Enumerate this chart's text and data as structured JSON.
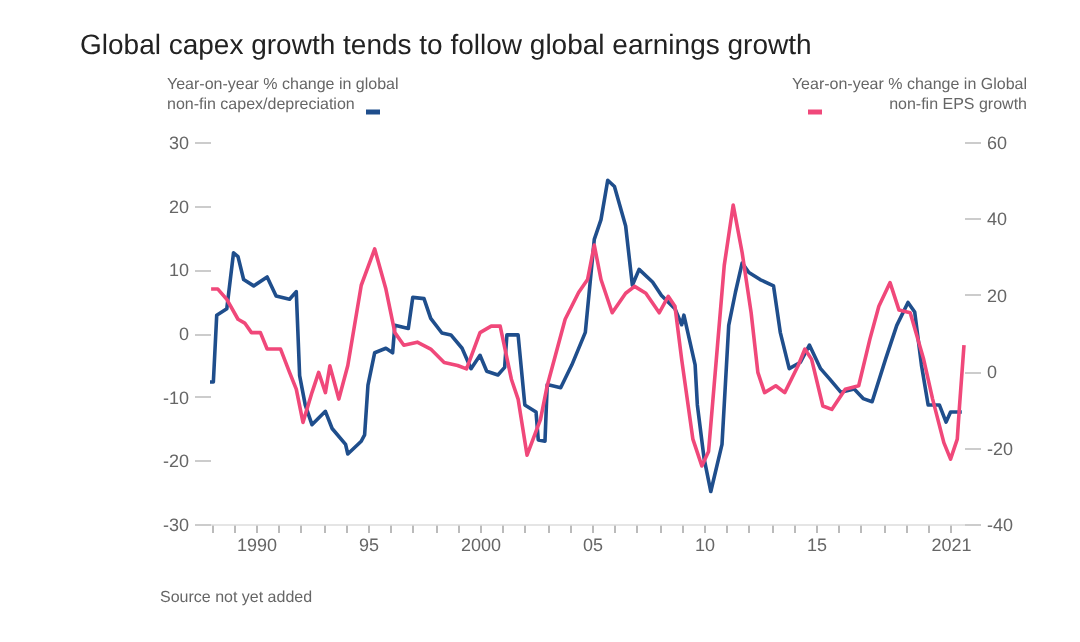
{
  "chart_data": {
    "type": "line",
    "title": "Global capex growth tends to follow global earnings growth",
    "ylabel": "Year-on-year % change in global\nnon-fin capex/depreciation",
    "y2label": "Year-on-year % change in Global\nnon-fin EPS growth",
    "annotations": [
      "Source not yet added"
    ],
    "xlim": [
      1987.95,
      2021.6
    ],
    "xticks": [
      {
        "value": 1988,
        "label": null
      },
      {
        "value": 1989,
        "label": null
      },
      {
        "value": 1990,
        "label": "1990"
      },
      {
        "value": 1991,
        "label": null
      },
      {
        "value": 1992,
        "label": null
      },
      {
        "value": 1993,
        "label": null
      },
      {
        "value": 1994,
        "label": null
      },
      {
        "value": 1995,
        "label": "95"
      },
      {
        "value": 1996,
        "label": null
      },
      {
        "value": 1997,
        "label": null
      },
      {
        "value": 1998,
        "label": null
      },
      {
        "value": 1999,
        "label": null
      },
      {
        "value": 2000,
        "label": "2000"
      },
      {
        "value": 2001,
        "label": null
      },
      {
        "value": 2002,
        "label": null
      },
      {
        "value": 2003,
        "label": null
      },
      {
        "value": 2004,
        "label": null
      },
      {
        "value": 2005,
        "label": "05"
      },
      {
        "value": 2006,
        "label": null
      },
      {
        "value": 2007,
        "label": null
      },
      {
        "value": 2008,
        "label": null
      },
      {
        "value": 2009,
        "label": null
      },
      {
        "value": 2010,
        "label": "10"
      },
      {
        "value": 2011,
        "label": null
      },
      {
        "value": 2012,
        "label": null
      },
      {
        "value": 2013,
        "label": null
      },
      {
        "value": 2014,
        "label": null
      },
      {
        "value": 2015,
        "label": "15"
      },
      {
        "value": 2016,
        "label": null
      },
      {
        "value": 2017,
        "label": null
      },
      {
        "value": 2018,
        "label": null
      },
      {
        "value": 2019,
        "label": null
      },
      {
        "value": 2020,
        "label": null
      },
      {
        "value": 2021,
        "label": "2021"
      }
    ],
    "ylim": [
      -30,
      30
    ],
    "yticks": [
      -30,
      -20,
      -10,
      0,
      10,
      20,
      30
    ],
    "y2lim": [
      -40,
      60
    ],
    "y2ticks": [
      -40,
      -20,
      0,
      20,
      40,
      60
    ],
    "grid": false,
    "line_style": "solid",
    "marker": "none",
    "series": [
      {
        "color": "#1f4e8c",
        "axis": "y",
        "x": [
          1987.95,
          1988.1,
          1988.25,
          1988.7,
          1989.0,
          1989.2,
          1989.45,
          1989.9,
          1990.5,
          1990.9,
          1991.5,
          1991.8,
          1991.95,
          1992.2,
          1992.5,
          1993.1,
          1993.4,
          1994.0,
          1994.1,
          1994.7,
          1994.85,
          1995.0,
          1995.3,
          1995.8,
          1996.1,
          1996.2,
          1996.8,
          1997.0,
          1997.5,
          1997.8,
          1998.3,
          1998.7,
          1999.2,
          1999.6,
          2000.0,
          2000.3,
          2000.8,
          2001.1,
          2001.2,
          2001.7,
          2002.0,
          2002.5,
          2002.6,
          2002.9,
          2003.0,
          2003.6,
          2004.1,
          2004.7,
          2005.1,
          2005.4,
          2005.7,
          2006.0,
          2006.5,
          2006.8,
          2007.1,
          2007.7,
          2008.1,
          2008.7,
          2009.0,
          2009.1,
          2009.6,
          2009.7,
          2010.0,
          2010.3,
          2010.8,
          2011.1,
          2011.4,
          2011.7,
          2012.0,
          2012.5,
          2013.1,
          2013.4,
          2013.8,
          2014.3,
          2014.7,
          2015.2,
          2015.6,
          2016.1,
          2016.7,
          2017.1,
          2017.5,
          2018.1,
          2018.6,
          2019.1,
          2019.4,
          2019.7,
          2020.0,
          2020.5,
          2020.8,
          2021.0,
          2021.5
        ],
        "values": [
          -7.7,
          -7.7,
          2.8,
          3.8,
          12.6,
          12,
          8.4,
          7.4,
          8.8,
          5.8,
          5.3,
          6.5,
          -6.7,
          -11.3,
          -14.4,
          -12.3,
          -15,
          -17.5,
          -19,
          -17,
          -16,
          -8.2,
          -3.1,
          -2.4,
          -3.1,
          1.2,
          0.7,
          5.6,
          5.4,
          2.3,
          0,
          -0.3,
          -2.4,
          -5.6,
          -3.5,
          -6,
          -6.6,
          -5.4,
          -0.3,
          -0.3,
          -11.3,
          -12.4,
          -16.8,
          -17,
          -8.1,
          -8.6,
          -5,
          0.1,
          14.7,
          17.8,
          24,
          23,
          16.8,
          7.5,
          10,
          8,
          5.9,
          3.8,
          1.3,
          2.8,
          -5,
          -11.3,
          -19.7,
          -24.9,
          -17.5,
          1.2,
          6.4,
          11,
          9.5,
          8.4,
          7.4,
          0.1,
          -5.6,
          -4.6,
          -1.9,
          -5.6,
          -7.2,
          -9.3,
          -8.8,
          -10.3,
          -10.8,
          -4.1,
          1.2,
          4.8,
          3.3,
          -5,
          -11.3,
          -11.3,
          -14,
          -12.4,
          -12.4
        ]
      },
      {
        "color": "#f0487a",
        "axis": "y2",
        "x": [
          1988.0,
          1988.3,
          1988.7,
          1989.2,
          1989.5,
          1989.8,
          1990.2,
          1990.5,
          1991.1,
          1991.5,
          1991.8,
          1992.1,
          1992.5,
          1992.8,
          1993.1,
          1993.3,
          1993.7,
          1994.1,
          1994.7,
          1995.3,
          1995.8,
          1996.2,
          1996.6,
          1997.2,
          1997.8,
          1998.4,
          1999.0,
          1999.4,
          2000.0,
          2000.5,
          2000.9,
          2001.4,
          2001.7,
          2002.1,
          2002.7,
          2003.0,
          2003.8,
          2004.4,
          2004.8,
          2005.1,
          2005.4,
          2005.9,
          2006.5,
          2006.9,
          2007.4,
          2008.0,
          2008.4,
          2008.7,
          2009.0,
          2009.5,
          2009.9,
          2010.2,
          2010.6,
          2010.9,
          2011.3,
          2011.7,
          2012.1,
          2012.4,
          2012.7,
          2013.2,
          2013.6,
          2014.2,
          2014.5,
          2014.8,
          2015.3,
          2015.7,
          2016.3,
          2016.9,
          2017.4,
          2017.8,
          2018.3,
          2018.7,
          2019.2,
          2019.8,
          2020.2,
          2020.7,
          2021.0,
          2021.3,
          2021.4,
          2021.6
        ],
        "values": [
          21.5,
          21.5,
          18.8,
          13.6,
          12.6,
          10.1,
          10.1,
          5.8,
          5.8,
          -0.3,
          -4.7,
          -13.4,
          -5.6,
          -0.3,
          -5.6,
          1.4,
          -7.3,
          1.5,
          22.5,
          32,
          21.5,
          10.1,
          6.8,
          7.6,
          5.8,
          2.3,
          1.5,
          0.6,
          10.1,
          11.8,
          11.8,
          -2.1,
          -7.3,
          -22,
          -12.6,
          -3.8,
          13.6,
          20.6,
          24,
          33,
          24,
          15.3,
          20.4,
          22.2,
          20.4,
          15.3,
          19.6,
          17,
          3.1,
          -17.8,
          -24.8,
          -21,
          6.8,
          27.7,
          43.5,
          31,
          15.3,
          -0.3,
          -5.6,
          -3.8,
          -5.6,
          1.5,
          5.8,
          3.1,
          -9.1,
          -10,
          -4.7,
          -3.8,
          8.4,
          17,
          23.2,
          16,
          15.3,
          3.1,
          -7.3,
          -18.7,
          -23,
          -17.8,
          -9.1,
          6.8
        ]
      }
    ]
  }
}
